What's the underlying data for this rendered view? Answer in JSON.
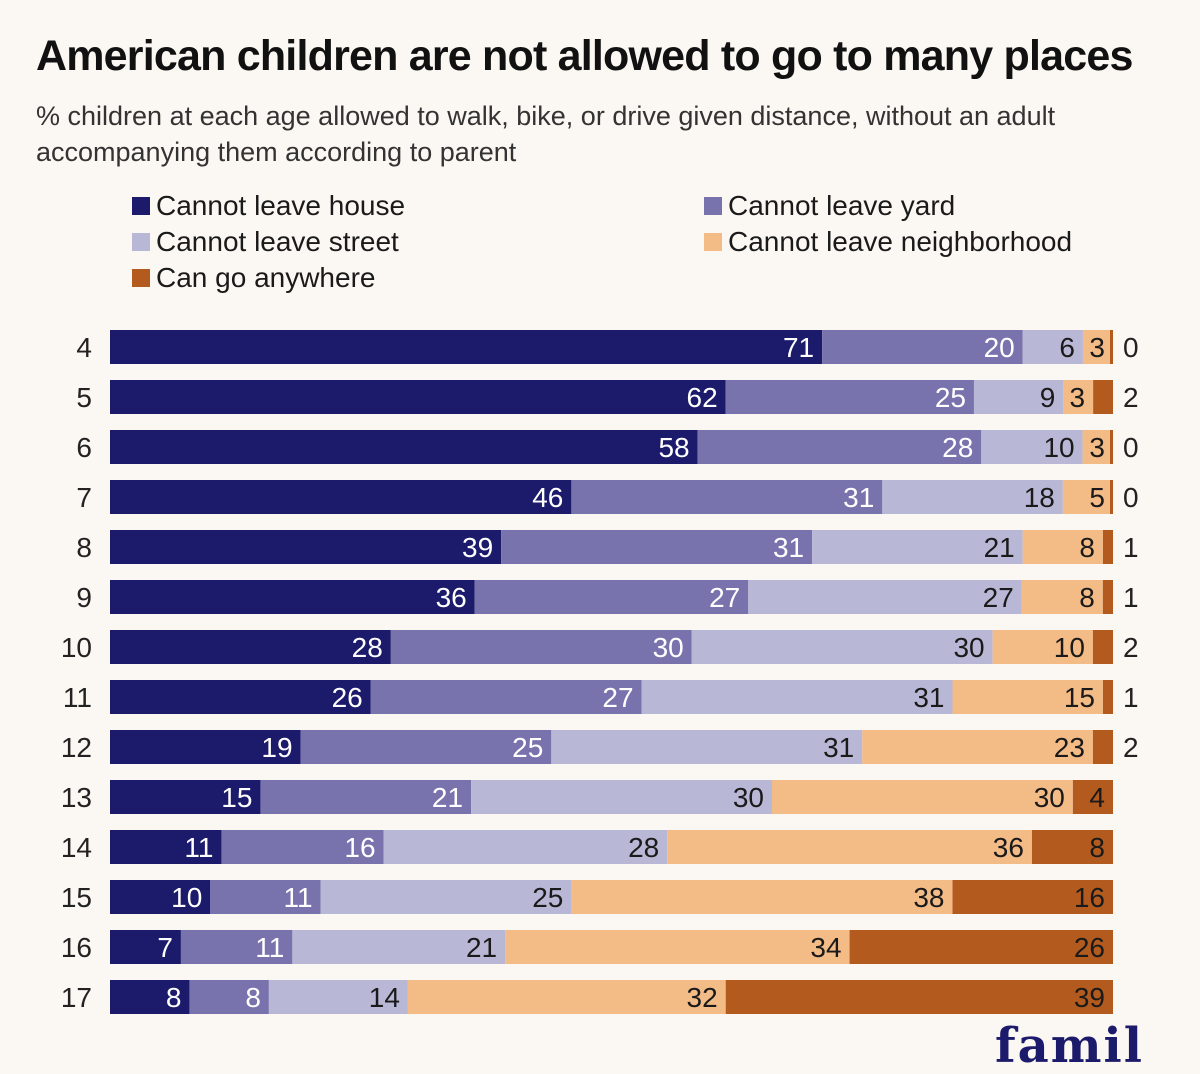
{
  "header": {
    "title": "American children are not allowed to go to many places",
    "subtitle": "% children at each age allowed to walk, bike, or drive given distance, without an adult accompanying them according to parent"
  },
  "footer": {
    "brand_partial": "famil"
  },
  "chart_data": {
    "type": "bar",
    "orientation": "horizontal",
    "stacked": true,
    "categories": [
      "4",
      "5",
      "6",
      "7",
      "8",
      "9",
      "10",
      "11",
      "12",
      "13",
      "14",
      "15",
      "16",
      "17"
    ],
    "series": [
      {
        "name": "Cannot leave house",
        "color": "#1c1a6b",
        "values": [
          71,
          62,
          58,
          46,
          39,
          36,
          28,
          26,
          19,
          15,
          11,
          10,
          7,
          8
        ]
      },
      {
        "name": "Cannot leave yard",
        "color": "#7873ad",
        "values": [
          20,
          25,
          28,
          31,
          31,
          27,
          30,
          27,
          25,
          21,
          16,
          11,
          11,
          8
        ]
      },
      {
        "name": "Cannot leave street",
        "color": "#b9b7d6",
        "values": [
          6,
          9,
          10,
          18,
          21,
          27,
          30,
          31,
          31,
          30,
          28,
          25,
          21,
          14
        ]
      },
      {
        "name": "Cannot leave neighborhood",
        "color": "#f3bb86",
        "values": [
          3,
          3,
          3,
          5,
          8,
          8,
          10,
          15,
          23,
          30,
          36,
          38,
          34,
          32
        ]
      },
      {
        "name": "Can go anywhere",
        "color": "#b35b1e",
        "values": [
          0,
          2,
          0,
          0,
          1,
          1,
          2,
          1,
          2,
          4,
          8,
          16,
          26,
          39
        ]
      }
    ],
    "legend_placement": "top",
    "grid": false
  }
}
